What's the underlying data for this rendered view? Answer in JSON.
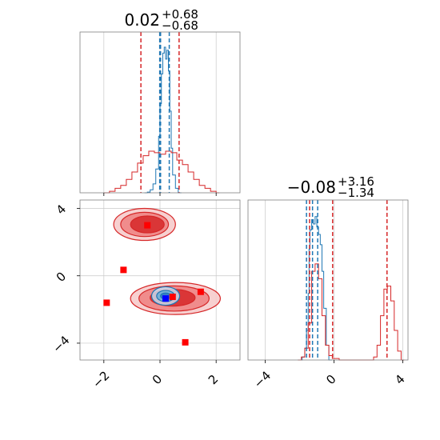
{
  "chart_data": [
    {
      "type": "line",
      "panel": "marginal-x",
      "title_main": "0.02",
      "title_sup": "+0.68",
      "title_sub": "−0.68",
      "xlim": [
        -2.85,
        2.85
      ],
      "grid": true,
      "series": [
        {
          "name": "",
          "color": "#1f77b4",
          "x": [
            -0.55,
            -0.45,
            -0.35,
            -0.25,
            -0.15,
            -0.05,
            0.0,
            0.05,
            0.1,
            0.15,
            0.2,
            0.25,
            0.3,
            0.35,
            0.4,
            0.45,
            0.55,
            0.65
          ],
          "values": [
            0,
            0.005,
            0.02,
            0.06,
            0.16,
            0.38,
            0.6,
            0.8,
            0.94,
            0.98,
            0.9,
            0.96,
            0.82,
            0.55,
            0.3,
            0.12,
            0.03,
            0
          ]
        },
        {
          "name": "",
          "color": "#d62728",
          "x": [
            -2.0,
            -1.8,
            -1.6,
            -1.4,
            -1.2,
            -1.0,
            -0.8,
            -0.6,
            -0.4,
            -0.2,
            0.0,
            0.2,
            0.4,
            0.6,
            0.8,
            1.0,
            1.2,
            1.4,
            1.6,
            1.8,
            2.0
          ],
          "values": [
            0,
            0.01,
            0.03,
            0.05,
            0.09,
            0.14,
            0.2,
            0.25,
            0.28,
            0.27,
            0.26,
            0.28,
            0.27,
            0.22,
            0.19,
            0.14,
            0.09,
            0.05,
            0.03,
            0.01,
            0
          ]
        }
      ],
      "vlines": [
        {
          "x": -0.68,
          "color": "#d62728"
        },
        {
          "x": 0.68,
          "color": "#d62728"
        },
        {
          "x": 0.02,
          "color": "#1f77b4"
        },
        {
          "x": -0.01,
          "color": "#1f77b4"
        },
        {
          "x": 0.33,
          "color": "#1f77b4"
        }
      ]
    },
    {
      "type": "scatter",
      "panel": "joint",
      "xlim": [
        -2.85,
        2.85
      ],
      "ylim": [
        -5.0,
        4.5
      ],
      "xticks": [
        -2,
        0,
        2
      ],
      "yticks": [
        -4,
        0,
        4
      ],
      "xtick_labels": [
        "−2",
        "0",
        "2"
      ],
      "ytick_labels": [
        "−4",
        "0",
        "4"
      ],
      "grid": true,
      "contours": [
        {
          "color": "#d62728",
          "fill": "#f6c8c8",
          "cx": -0.55,
          "cy": 3.05,
          "rx": 1.1,
          "ry": 0.95
        },
        {
          "color": "#d62728",
          "fill": "#ee8080",
          "cx": -0.55,
          "cy": 3.05,
          "rx": 0.85,
          "ry": 0.72
        },
        {
          "color": "#d62728",
          "fill": "#d62728",
          "cx": -0.45,
          "cy": 3.05,
          "rx": 0.6,
          "ry": 0.5
        },
        {
          "color": "#d62728",
          "fill": "#f6c8c8",
          "cx": 0.55,
          "cy": -1.35,
          "rx": 1.6,
          "ry": 0.95
        },
        {
          "color": "#d62728",
          "fill": "#ee8080",
          "cx": 0.5,
          "cy": -1.35,
          "rx": 1.25,
          "ry": 0.75
        },
        {
          "color": "#d62728",
          "fill": "#d62728",
          "cx": 0.45,
          "cy": -1.3,
          "rx": 0.8,
          "ry": 0.5
        },
        {
          "color": "#1f77b4",
          "fill": "#c6dbef",
          "cx": 0.2,
          "cy": -1.2,
          "rx": 0.5,
          "ry": 0.55
        },
        {
          "color": "#1f77b4",
          "fill": "#6aaed6",
          "cx": 0.2,
          "cy": -1.2,
          "rx": 0.32,
          "ry": 0.33
        },
        {
          "color": "#1f77b4",
          "fill": "#2a78c0",
          "cx": 0.2,
          "cy": -1.2,
          "rx": 0.18,
          "ry": 0.18
        }
      ],
      "points": [
        {
          "x": -0.45,
          "y": 3.0,
          "color": "#ff0000"
        },
        {
          "x": -1.3,
          "y": 0.35,
          "color": "#ff0000"
        },
        {
          "x": -1.9,
          "y": -1.6,
          "color": "#ff0000"
        },
        {
          "x": 1.45,
          "y": -0.95,
          "color": "#ff0000"
        },
        {
          "x": 0.45,
          "y": -1.25,
          "color": "#ff0000"
        },
        {
          "x": 0.9,
          "y": -3.95,
          "color": "#ff0000"
        },
        {
          "x": 0.2,
          "y": -1.35,
          "color": "#0000ff"
        }
      ]
    },
    {
      "type": "line",
      "panel": "marginal-y",
      "title_main": "−0.08",
      "title_sup": "+3.16",
      "title_sub": "−1.34",
      "xlim": [
        -5.0,
        4.3
      ],
      "xticks": [
        -4,
        0,
        4
      ],
      "xtick_labels": [
        "−4",
        "0",
        "4"
      ],
      "grid": true,
      "series": [
        {
          "name": "",
          "color": "#1f77b4",
          "x": [
            -2.0,
            -1.85,
            -1.7,
            -1.6,
            -1.5,
            -1.45,
            -1.4,
            -1.3,
            -1.2,
            -1.1,
            -1.0,
            -0.9,
            -0.8,
            -0.7,
            -0.6,
            -0.45,
            -0.3
          ],
          "values": [
            0,
            0.02,
            0.08,
            0.2,
            0.45,
            0.75,
            0.88,
            0.95,
            0.92,
            0.97,
            0.9,
            0.85,
            0.78,
            0.6,
            0.35,
            0.1,
            0
          ]
        },
        {
          "name": "",
          "color": "#d62728",
          "x": [
            -2.1,
            -1.9,
            -1.7,
            -1.5,
            -1.3,
            -1.1,
            -0.9,
            -0.7,
            -0.5,
            -0.3,
            -0.1,
            0.3,
            0.7,
            1.1,
            1.5,
            1.9,
            2.3,
            2.5,
            2.7,
            2.9,
            3.1,
            3.3,
            3.5,
            3.7,
            3.9
          ],
          "values": [
            0,
            0.02,
            0.08,
            0.25,
            0.6,
            0.65,
            0.55,
            0.3,
            0.1,
            0.03,
            0.01,
            0,
            0,
            0,
            0,
            0,
            0.02,
            0.1,
            0.3,
            0.48,
            0.5,
            0.4,
            0.2,
            0.06,
            0
          ]
        }
      ],
      "vlines": [
        {
          "x": -1.42,
          "color": "#d62728"
        },
        {
          "x": -0.08,
          "color": "#d62728"
        },
        {
          "x": 3.08,
          "color": "#d62728"
        },
        {
          "x": -1.6,
          "color": "#1f77b4"
        },
        {
          "x": -1.25,
          "color": "#1f77b4"
        },
        {
          "x": -0.95,
          "color": "#1f77b4"
        }
      ]
    }
  ]
}
